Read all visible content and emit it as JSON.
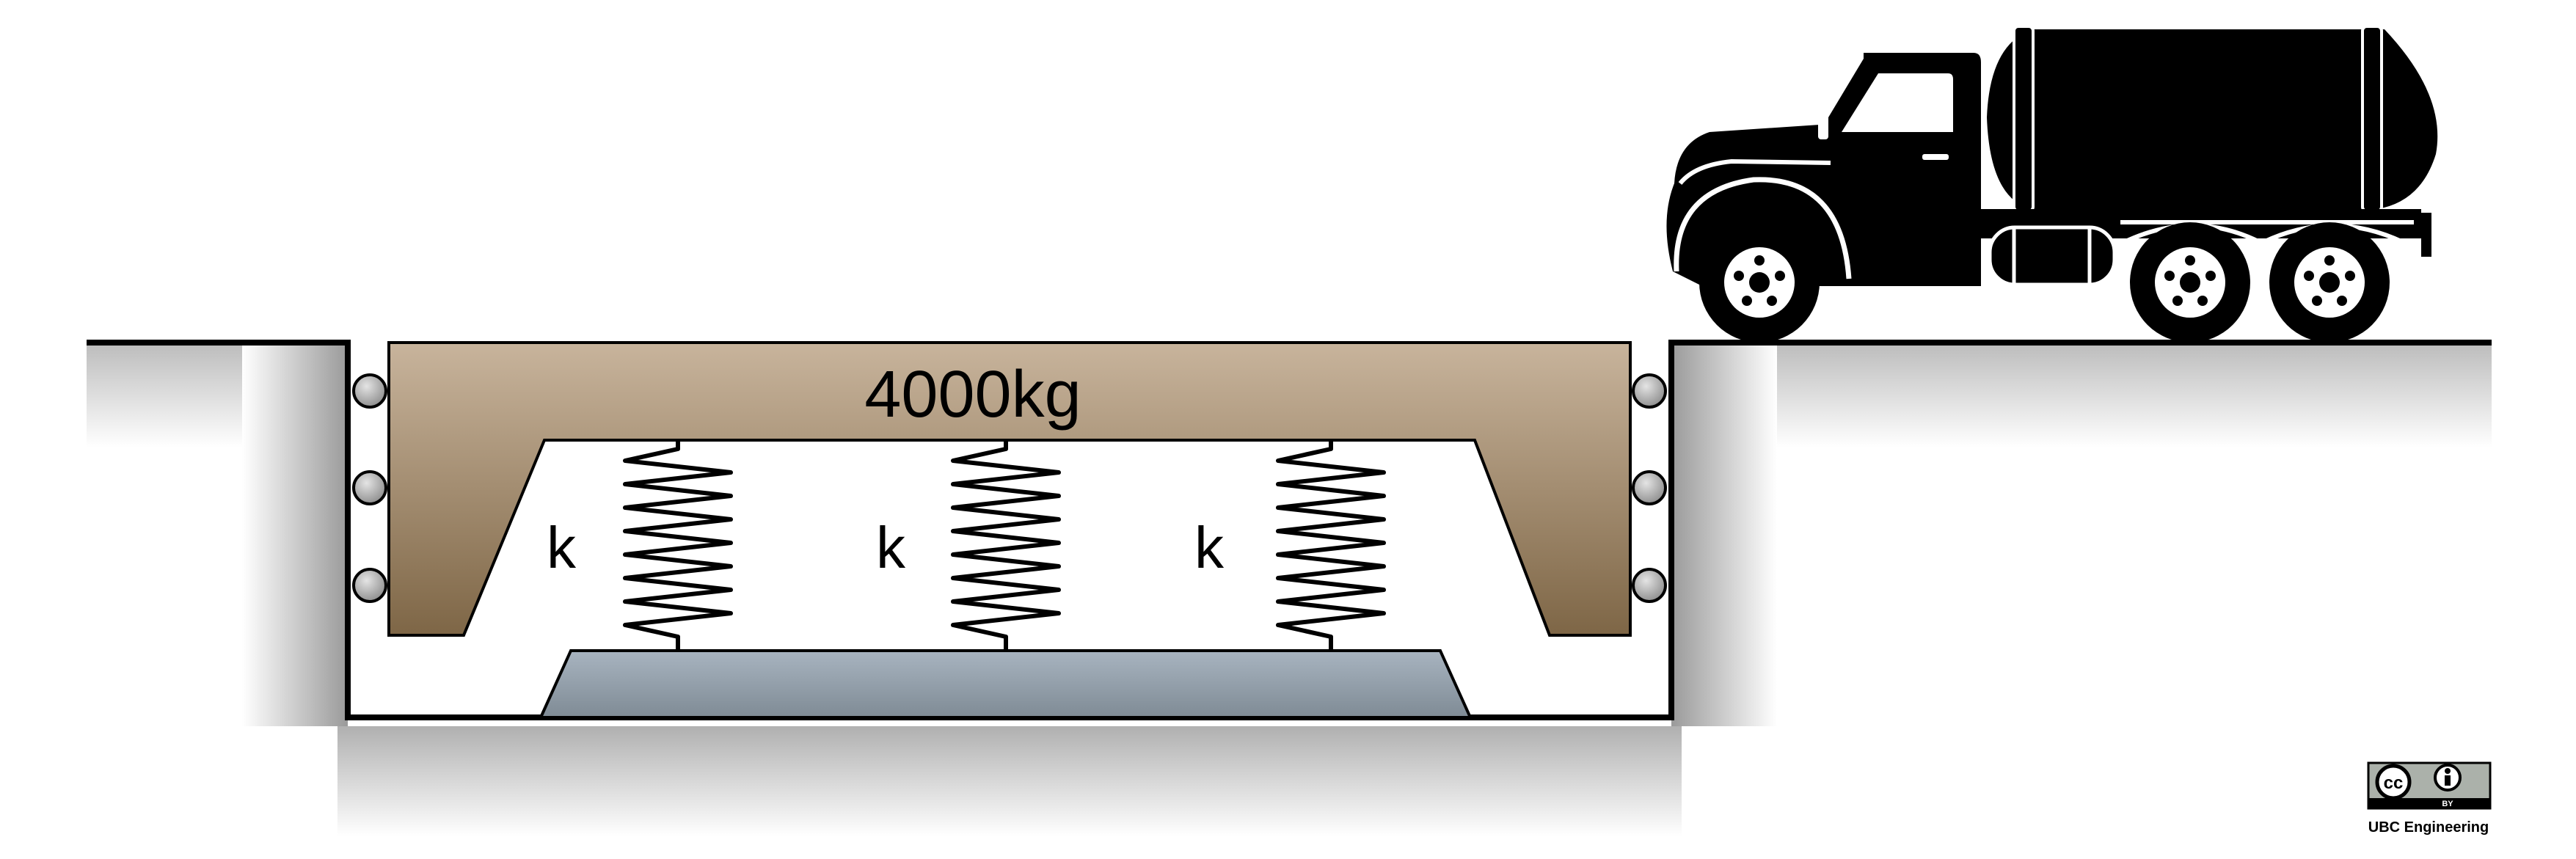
{
  "diagram": {
    "mass_label": "4000kg",
    "spring_labels": [
      "k",
      "k",
      "k"
    ]
  },
  "license": {
    "cc_badge": "cc",
    "by_badge": "BY",
    "credit": "UBC Engineering"
  },
  "colors": {
    "mass_top": "#c8b49c",
    "mass_bottom": "#7e6646",
    "base_plate_top": "#a8b4c0",
    "base_plate_bottom": "#7f8b95",
    "roller": "#b8b8b8",
    "outline": "#000000"
  },
  "icons": [
    "truck-icon",
    "roller-icon",
    "spring-icon",
    "cc-icon",
    "by-icon"
  ]
}
